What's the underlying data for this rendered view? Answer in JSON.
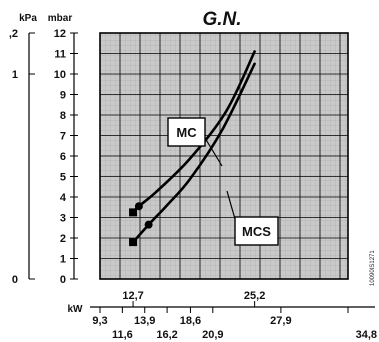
{
  "chart_data": {
    "type": "line",
    "title": "G.N.",
    "y_axis_mbar": {
      "unit": "mbar",
      "range": [
        0,
        12
      ],
      "ticks": [
        "0",
        "1",
        "2",
        "3",
        "4",
        "5",
        "6",
        "7",
        "8",
        "9",
        "10",
        "11",
        "12"
      ]
    },
    "y_axis_kpa": {
      "unit": "kPa",
      "ticks": [
        {
          "label": "0",
          "mbar": 0
        },
        {
          "label": "1",
          "mbar": 10
        },
        {
          "label": ",2",
          "mbar": 12
        }
      ]
    },
    "x_axis_kw": {
      "unit": "kW",
      "range": [
        9.3,
        34.8
      ],
      "ticks_top": [
        "12,7",
        "25,2"
      ],
      "ticks_upper": [
        "9,3",
        "13,9",
        "18,6",
        "27,9"
      ],
      "ticks_lower": [
        "11,6",
        "16,2",
        "20,9",
        "34,8"
      ]
    },
    "series": [
      {
        "name": "MC",
        "x": [
          12.7,
          13.3,
          15.2,
          18.6,
          22.3,
          25.2
        ],
        "y": [
          3.25,
          3.55,
          4.3,
          5.9,
          8.2,
          11.1
        ]
      },
      {
        "name": "MCS",
        "x": [
          12.7,
          14.3,
          16.2,
          18.6,
          21.9,
          25.2
        ],
        "y": [
          1.8,
          2.65,
          3.6,
          4.9,
          7.3,
          10.5
        ]
      }
    ],
    "grid": true,
    "code": "10090IS1271"
  }
}
